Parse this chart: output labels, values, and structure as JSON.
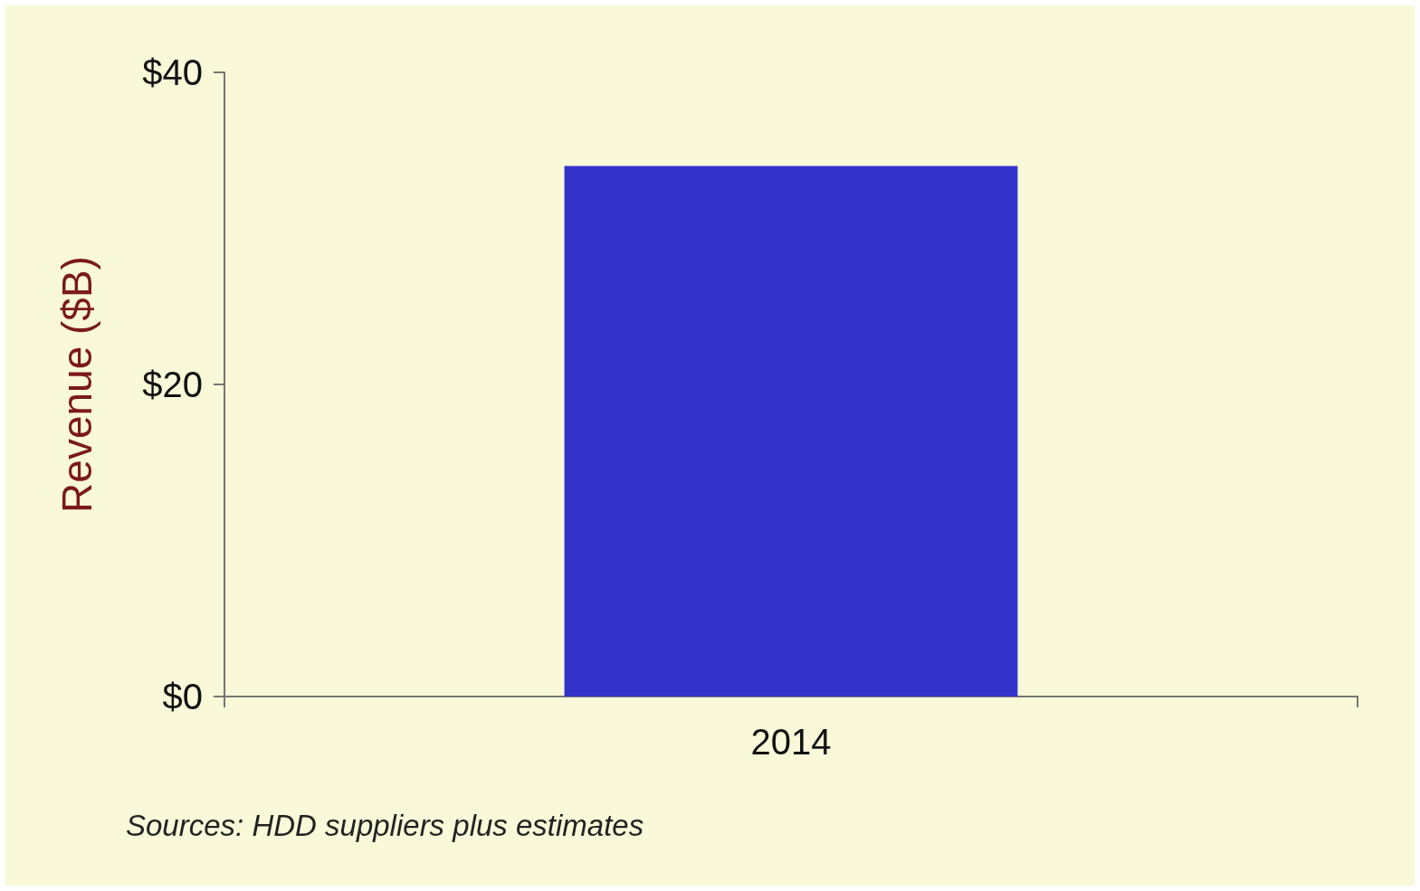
{
  "chart_data": {
    "type": "bar",
    "ylabel": "Revenue ($B)",
    "categories": [
      "2014"
    ],
    "values": [
      34
    ],
    "color": "#3333cc",
    "ylim": [
      0,
      40
    ],
    "yticks": [
      {
        "value": 0,
        "label": "$0"
      },
      {
        "value": 20,
        "label": "$20"
      },
      {
        "value": 40,
        "label": "$40"
      }
    ],
    "grid": false,
    "annotations": [
      "Sources: HDD suppliers plus estimates"
    ]
  }
}
